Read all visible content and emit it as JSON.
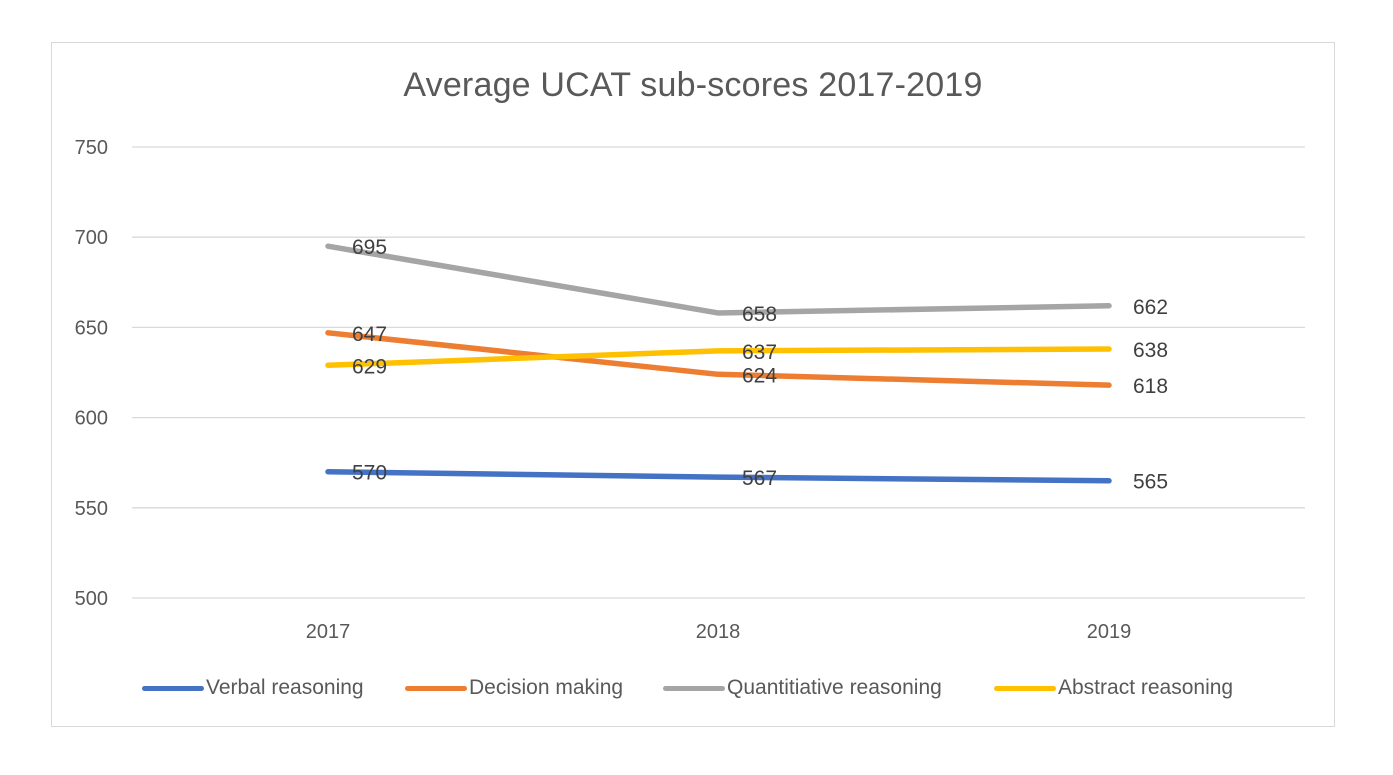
{
  "chart_data": {
    "type": "line",
    "title": "Average UCAT sub-scores 2017-2019",
    "xlabel": "",
    "ylabel": "",
    "categories": [
      "2017",
      "2018",
      "2019"
    ],
    "ylim": [
      500,
      750
    ],
    "yticks": [
      500,
      550,
      600,
      650,
      700,
      750
    ],
    "grid": true,
    "legend_position": "bottom",
    "series": [
      {
        "name": "Verbal reasoning",
        "color": "#4472c4",
        "values": [
          570,
          567,
          565
        ]
      },
      {
        "name": "Decision making",
        "color": "#ed7d31",
        "values": [
          647,
          624,
          618
        ]
      },
      {
        "name": "Quantitiative reasoning",
        "color": "#a5a5a5",
        "values": [
          695,
          658,
          662
        ]
      },
      {
        "name": "Abstract reasoning",
        "color": "#ffc000",
        "values": [
          629,
          637,
          638
        ]
      }
    ]
  }
}
